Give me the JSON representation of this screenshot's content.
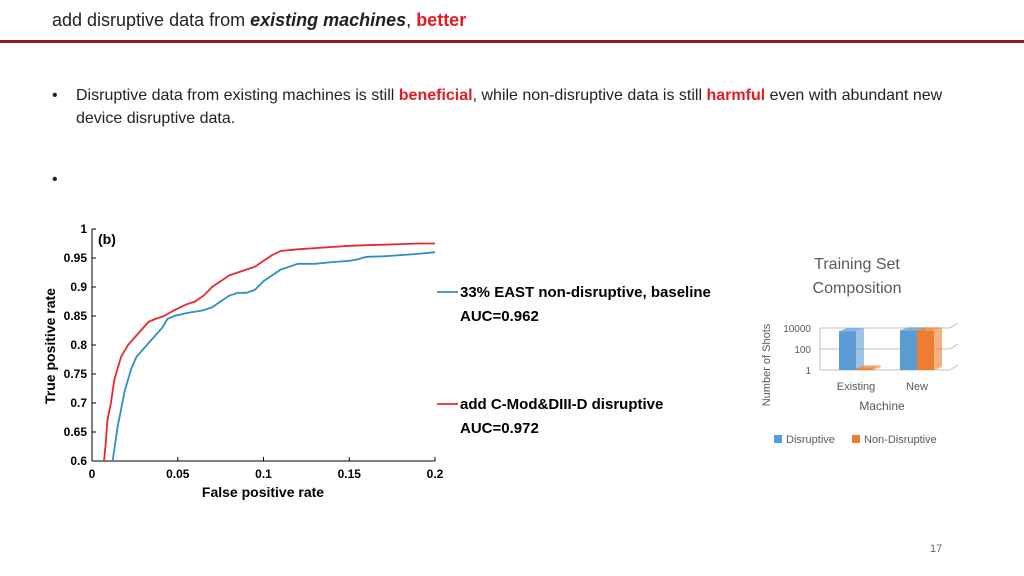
{
  "slide": {
    "title_pre": "add disruptive data from ",
    "title_em": "existing machines",
    "title_comma": ", ",
    "title_red": "better",
    "bullet_marker": "•",
    "bullet1_a": "Disruptive data from existing machines is still ",
    "bullet1_red1": "beneficial",
    "bullet1_b": ", while non-disruptive data is still ",
    "bullet1_red2": "harmful",
    "bullet1_c": " even with abundant new device disruptive data.",
    "bullet2": "",
    "page_number": "17",
    "colors": {
      "rule": "#8b1e2d",
      "accent_red": "#e31b23"
    }
  },
  "chart_data": [
    {
      "type": "line",
      "panel_label": "(b)",
      "xlabel": "False positive rate",
      "ylabel": "True positive rate",
      "xlim": [
        0,
        0.2
      ],
      "ylim": [
        0.6,
        1
      ],
      "xticks": [
        "0",
        "0.05",
        "0.1",
        "0.15",
        "0.2"
      ],
      "yticks": [
        "0.6",
        "0.65",
        "0.7",
        "0.75",
        "0.8",
        "0.85",
        "0.9",
        "0.95",
        "1"
      ],
      "series": [
        {
          "name": "33% EAST non-disruptive, baseline",
          "sublabel": "AUC=0.962",
          "color": "#2f8fc4",
          "points": [
            [
              0.012,
              0.6
            ],
            [
              0.013,
              0.62
            ],
            [
              0.015,
              0.66
            ],
            [
              0.017,
              0.69
            ],
            [
              0.019,
              0.72
            ],
            [
              0.021,
              0.74
            ],
            [
              0.023,
              0.76
            ],
            [
              0.026,
              0.78
            ],
            [
              0.029,
              0.79
            ],
            [
              0.032,
              0.8
            ],
            [
              0.035,
              0.81
            ],
            [
              0.038,
              0.82
            ],
            [
              0.041,
              0.83
            ],
            [
              0.044,
              0.845
            ],
            [
              0.048,
              0.85
            ],
            [
              0.055,
              0.855
            ],
            [
              0.065,
              0.86
            ],
            [
              0.07,
              0.865
            ],
            [
              0.075,
              0.875
            ],
            [
              0.08,
              0.885
            ],
            [
              0.085,
              0.89
            ],
            [
              0.09,
              0.89
            ],
            [
              0.095,
              0.895
            ],
            [
              0.1,
              0.91
            ],
            [
              0.105,
              0.92
            ],
            [
              0.11,
              0.93
            ],
            [
              0.115,
              0.935
            ],
            [
              0.12,
              0.94
            ],
            [
              0.13,
              0.94
            ],
            [
              0.14,
              0.943
            ],
            [
              0.15,
              0.945
            ],
            [
              0.155,
              0.948
            ],
            [
              0.16,
              0.952
            ],
            [
              0.17,
              0.953
            ],
            [
              0.18,
              0.955
            ],
            [
              0.19,
              0.957
            ],
            [
              0.2,
              0.96
            ]
          ]
        },
        {
          "name": "add C-Mod&DIII-D disruptive",
          "sublabel": "AUC=0.972",
          "color": "#e8282b",
          "points": [
            [
              0.007,
              0.6
            ],
            [
              0.008,
              0.63
            ],
            [
              0.009,
              0.67
            ],
            [
              0.011,
              0.7
            ],
            [
              0.013,
              0.74
            ],
            [
              0.015,
              0.76
            ],
            [
              0.017,
              0.78
            ],
            [
              0.019,
              0.79
            ],
            [
              0.021,
              0.8
            ],
            [
              0.024,
              0.81
            ],
            [
              0.027,
              0.82
            ],
            [
              0.03,
              0.83
            ],
            [
              0.033,
              0.84
            ],
            [
              0.037,
              0.845
            ],
            [
              0.042,
              0.85
            ],
            [
              0.048,
              0.86
            ],
            [
              0.055,
              0.87
            ],
            [
              0.06,
              0.875
            ],
            [
              0.065,
              0.885
            ],
            [
              0.07,
              0.9
            ],
            [
              0.075,
              0.91
            ],
            [
              0.08,
              0.92
            ],
            [
              0.085,
              0.925
            ],
            [
              0.09,
              0.93
            ],
            [
              0.095,
              0.935
            ],
            [
              0.1,
              0.945
            ],
            [
              0.105,
              0.955
            ],
            [
              0.11,
              0.962
            ],
            [
              0.12,
              0.965
            ],
            [
              0.13,
              0.967
            ],
            [
              0.14,
              0.969
            ],
            [
              0.15,
              0.971
            ],
            [
              0.16,
              0.972
            ],
            [
              0.17,
              0.973
            ],
            [
              0.18,
              0.974
            ],
            [
              0.19,
              0.975
            ],
            [
              0.2,
              0.975
            ]
          ]
        }
      ]
    },
    {
      "type": "bar",
      "title": "Training Set Composition",
      "xlabel": "Machine",
      "ylabel": "Number of Shots",
      "scale": "log",
      "yticks": [
        "1",
        "100",
        "10000"
      ],
      "categories": [
        "Existing",
        "New"
      ],
      "series": [
        {
          "name": "Disruptive",
          "color": "#5b9bd5",
          "values": [
            5000,
            6000
          ]
        },
        {
          "name": "Non-Disruptive",
          "color": "#ed7d31",
          "values": [
            1,
            6000
          ]
        }
      ]
    }
  ]
}
